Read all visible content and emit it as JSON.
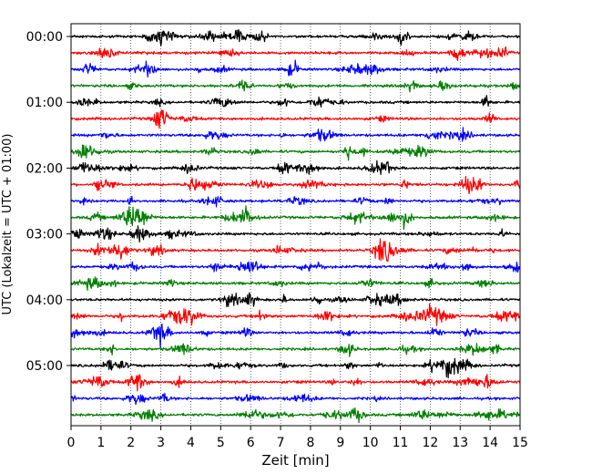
{
  "chart_data": {
    "type": "line",
    "title": "",
    "xlabel": "Zeit  [min]",
    "ylabel": "UTC (Lokalzeit = UTC + 01:00)",
    "xlim": [
      0,
      15
    ],
    "x_ticks": [
      0,
      1,
      2,
      3,
      4,
      5,
      6,
      7,
      8,
      9,
      10,
      11,
      12,
      13,
      14,
      15
    ],
    "y_tick_labels": [
      "00:00",
      "01:00",
      "02:00",
      "03:00",
      "04:00",
      "05:00"
    ],
    "y_tick_rows": [
      0,
      4,
      8,
      12,
      16,
      20
    ],
    "grid": "vertical dotted at each minute",
    "legend": "none",
    "trace_interval_min": 15,
    "colors_cycle": [
      "#000000",
      "#ff0000",
      "#0000ff",
      "#008000"
    ],
    "series": [
      {
        "start": "00:00",
        "color": "#000000"
      },
      {
        "start": "00:15",
        "color": "#ff0000"
      },
      {
        "start": "00:30",
        "color": "#0000ff"
      },
      {
        "start": "00:45",
        "color": "#008000"
      },
      {
        "start": "01:00",
        "color": "#000000"
      },
      {
        "start": "01:15",
        "color": "#ff0000"
      },
      {
        "start": "01:30",
        "color": "#0000ff"
      },
      {
        "start": "01:45",
        "color": "#008000"
      },
      {
        "start": "02:00",
        "color": "#000000"
      },
      {
        "start": "02:15",
        "color": "#ff0000"
      },
      {
        "start": "02:30",
        "color": "#0000ff"
      },
      {
        "start": "02:45",
        "color": "#008000"
      },
      {
        "start": "03:00",
        "color": "#000000"
      },
      {
        "start": "03:15",
        "color": "#ff0000"
      },
      {
        "start": "03:30",
        "color": "#0000ff"
      },
      {
        "start": "03:45",
        "color": "#008000"
      },
      {
        "start": "04:00",
        "color": "#000000"
      },
      {
        "start": "04:15",
        "color": "#ff0000"
      },
      {
        "start": "04:30",
        "color": "#0000ff"
      },
      {
        "start": "04:45",
        "color": "#008000"
      },
      {
        "start": "05:00",
        "color": "#000000"
      },
      {
        "start": "05:15",
        "color": "#ff0000"
      },
      {
        "start": "05:30",
        "color": "#0000ff"
      },
      {
        "start": "05:45",
        "color": "#008000"
      }
    ]
  }
}
